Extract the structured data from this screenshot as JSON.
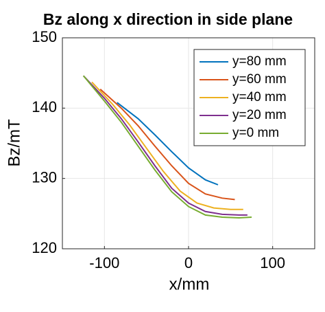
{
  "chart_data": {
    "type": "line",
    "title": "Bz along x direction in side plane",
    "x_label": "x/mm",
    "y_label": "Bz/mT",
    "xlim": [
      -150,
      150
    ],
    "xticks": [
      -100,
      0,
      100
    ],
    "ylim": [
      120,
      150
    ],
    "yticks": [
      120,
      130,
      140,
      150
    ],
    "grid": true,
    "legend": "northeast",
    "series": [
      {
        "name": "y=80 mm",
        "color": "#0072BD",
        "x": [
          -85,
          -60,
          -40,
          -20,
          0,
          20,
          35
        ],
        "values": [
          140.8,
          138.5,
          136.2,
          133.8,
          131.5,
          129.8,
          129.1
        ]
      },
      {
        "name": "y=60 mm",
        "color": "#D95319",
        "x": [
          -105,
          -80,
          -60,
          -40,
          -20,
          0,
          20,
          40,
          55
        ],
        "values": [
          142.7,
          140,
          137.5,
          134.6,
          131.8,
          129.3,
          127.8,
          127.2,
          127.0
        ]
      },
      {
        "name": "y=40 mm",
        "color": "#EDB120",
        "x": [
          -115,
          -90,
          -70,
          -50,
          -30,
          -10,
          10,
          30,
          50,
          65
        ],
        "values": [
          143.7,
          140.5,
          137.6,
          134.3,
          131,
          128.2,
          126.5,
          125.8,
          125.6,
          125.6
        ]
      },
      {
        "name": "y=20 mm",
        "color": "#7E2F8E",
        "x": [
          -125,
          -100,
          -80,
          -60,
          -40,
          -20,
          0,
          20,
          40,
          60,
          70
        ],
        "values": [
          144.6,
          141.4,
          138.5,
          135.2,
          131.8,
          128.6,
          126.5,
          125.3,
          124.9,
          124.8,
          124.8
        ]
      },
      {
        "name": "y=0 mm",
        "color": "#77AC30",
        "x": [
          -125,
          -100,
          -80,
          -60,
          -40,
          -20,
          0,
          20,
          40,
          60,
          75
        ],
        "values": [
          144.6,
          141,
          138,
          134.6,
          131.2,
          128.1,
          126,
          124.8,
          124.5,
          124.4,
          124.5
        ]
      }
    ]
  }
}
